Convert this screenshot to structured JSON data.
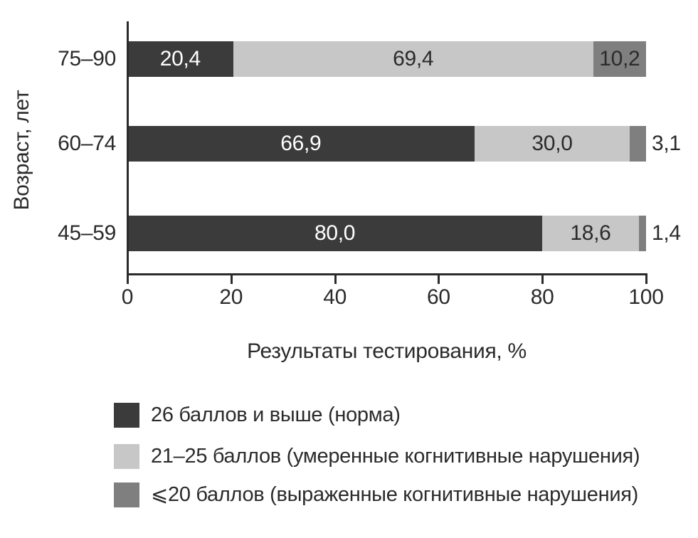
{
  "figure": {
    "background": "#ffffff",
    "text_color": "#2b2b2b",
    "axis_color": "#2b2b2b"
  },
  "chart_data": {
    "type": "bar",
    "orientation": "horizontal",
    "stacked": true,
    "title": "",
    "xlabel": "Результаты тестирования, %",
    "ylabel": "Возраст, лет",
    "categories": [
      "75–90",
      "60–74",
      "45–59"
    ],
    "series": [
      {
        "name": "26 баллов и выше (норма)",
        "color": "#3b3b3b",
        "label_color": "#ffffff",
        "values": [
          20.4,
          66.9,
          80.0
        ]
      },
      {
        "name": "21–25 баллов (умеренные когнитивные нарушения)",
        "color": "#c7c7c7",
        "label_color": "#2b2b2b",
        "values": [
          69.4,
          30.0,
          18.6
        ]
      },
      {
        "name": "⩽20 баллов (выраженные когнитивные нарушения)",
        "color": "#7f7f7f",
        "label_color": "#2b2b2b",
        "values": [
          10.2,
          3.1,
          1.4
        ]
      }
    ],
    "value_labels": [
      [
        "20,4",
        "66,9",
        "80,0"
      ],
      [
        "69,4",
        "30,0",
        "18,6"
      ],
      [
        "10,2",
        "3,1",
        "1,4"
      ]
    ],
    "xlim": [
      0,
      100
    ],
    "xticks": [
      0,
      20,
      40,
      60,
      80,
      100
    ],
    "decimal_separator": ",",
    "outside_label_threshold": 5,
    "grid": false,
    "legend_position": "bottom-left"
  }
}
